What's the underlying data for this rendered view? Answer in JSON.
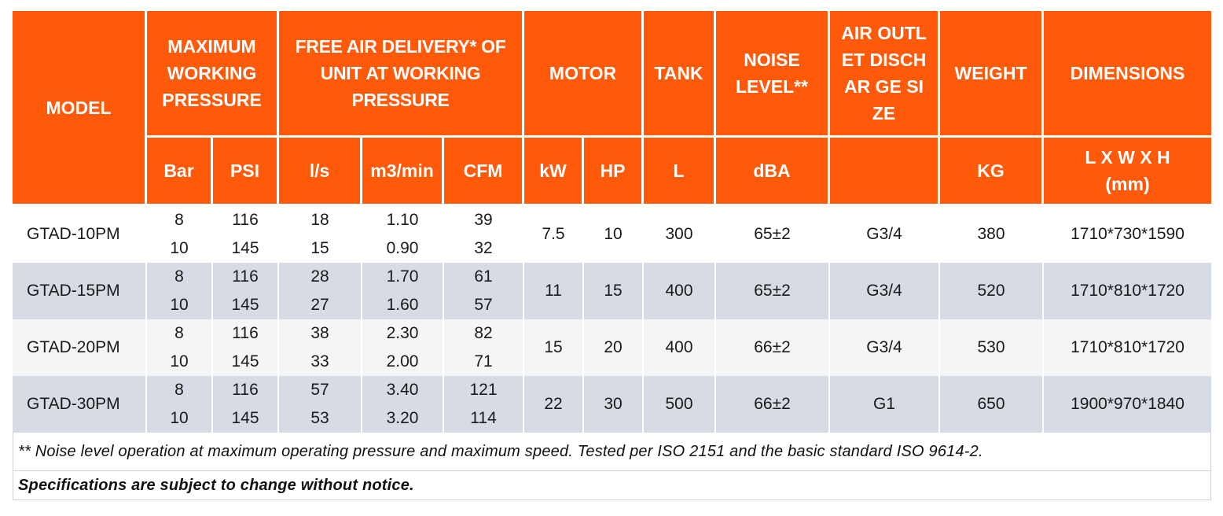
{
  "colors": {
    "header_bg": "#ff5a0a",
    "row_alt_bg": "#d7dbe3",
    "text": "#1a1a1a"
  },
  "headers": {
    "model": "MODEL",
    "max_pressure": "MAXIMUM WORKING PRESSURE",
    "fad": "FREE AIR DELIVERY* OF UNIT AT WORKING PRESSURE",
    "motor": "MOTOR",
    "tank": "TANK",
    "noise": "NOISE LEVEL**",
    "outlet": "AIR OUTLET DISCHAR GE SIZE",
    "weight": "WEIGHT",
    "dimensions": "DIMENSIONS"
  },
  "units": {
    "bar": "Bar",
    "psi": "PSI",
    "ls": "l/s",
    "m3min": "m3/min",
    "cfm": "CFM",
    "kw": "kW",
    "hp": "HP",
    "l": "L",
    "dba": "dBA",
    "outlet": "",
    "kg": "KG",
    "dim": "L X W X H (mm)"
  },
  "rows": [
    {
      "model": "GTAD-10PM",
      "bar": [
        "8",
        "10"
      ],
      "psi": [
        "116",
        "145"
      ],
      "ls": [
        "18",
        "15"
      ],
      "m3min": [
        "1.10",
        "0.90"
      ],
      "cfm": [
        "39",
        "32"
      ],
      "kw": "7.5",
      "hp": "10",
      "tank": "300",
      "dba": "65±2",
      "outlet": "G3/4",
      "weight": "380",
      "dims": "1710*730*1590"
    },
    {
      "model": "GTAD-15PM",
      "bar": [
        "8",
        "10"
      ],
      "psi": [
        "116",
        "145"
      ],
      "ls": [
        "28",
        "27"
      ],
      "m3min": [
        "1.70",
        "1.60"
      ],
      "cfm": [
        "61",
        "57"
      ],
      "kw": "11",
      "hp": "15",
      "tank": "400",
      "dba": "65±2",
      "outlet": "G3/4",
      "weight": "520",
      "dims": "1710*810*1720"
    },
    {
      "model": "GTAD-20PM",
      "bar": [
        "8",
        "10"
      ],
      "psi": [
        "116",
        "145"
      ],
      "ls": [
        "38",
        "33"
      ],
      "m3min": [
        "2.30",
        "2.00"
      ],
      "cfm": [
        "82",
        "71"
      ],
      "kw": "15",
      "hp": "20",
      "tank": "400",
      "dba": "66±2",
      "outlet": "G3/4",
      "weight": "530",
      "dims": "1710*810*1720"
    },
    {
      "model": "GTAD-30PM",
      "bar": [
        "8",
        "10"
      ],
      "psi": [
        "116",
        "145"
      ],
      "ls": [
        "57",
        "53"
      ],
      "m3min": [
        "3.40",
        "3.20"
      ],
      "cfm": [
        "121",
        "114"
      ],
      "kw": "22",
      "hp": "30",
      "tank": "500",
      "dba": "66±2",
      "outlet": "G1",
      "weight": "650",
      "dims": "1900*970*1840"
    }
  ],
  "notes": {
    "noise": "** Noise level operation at maximum operating pressure and maximum speed. Tested per ISO 2151 and the basic standard ISO 9614-2.",
    "disclaimer": "Specifications are subject to change without notice."
  }
}
